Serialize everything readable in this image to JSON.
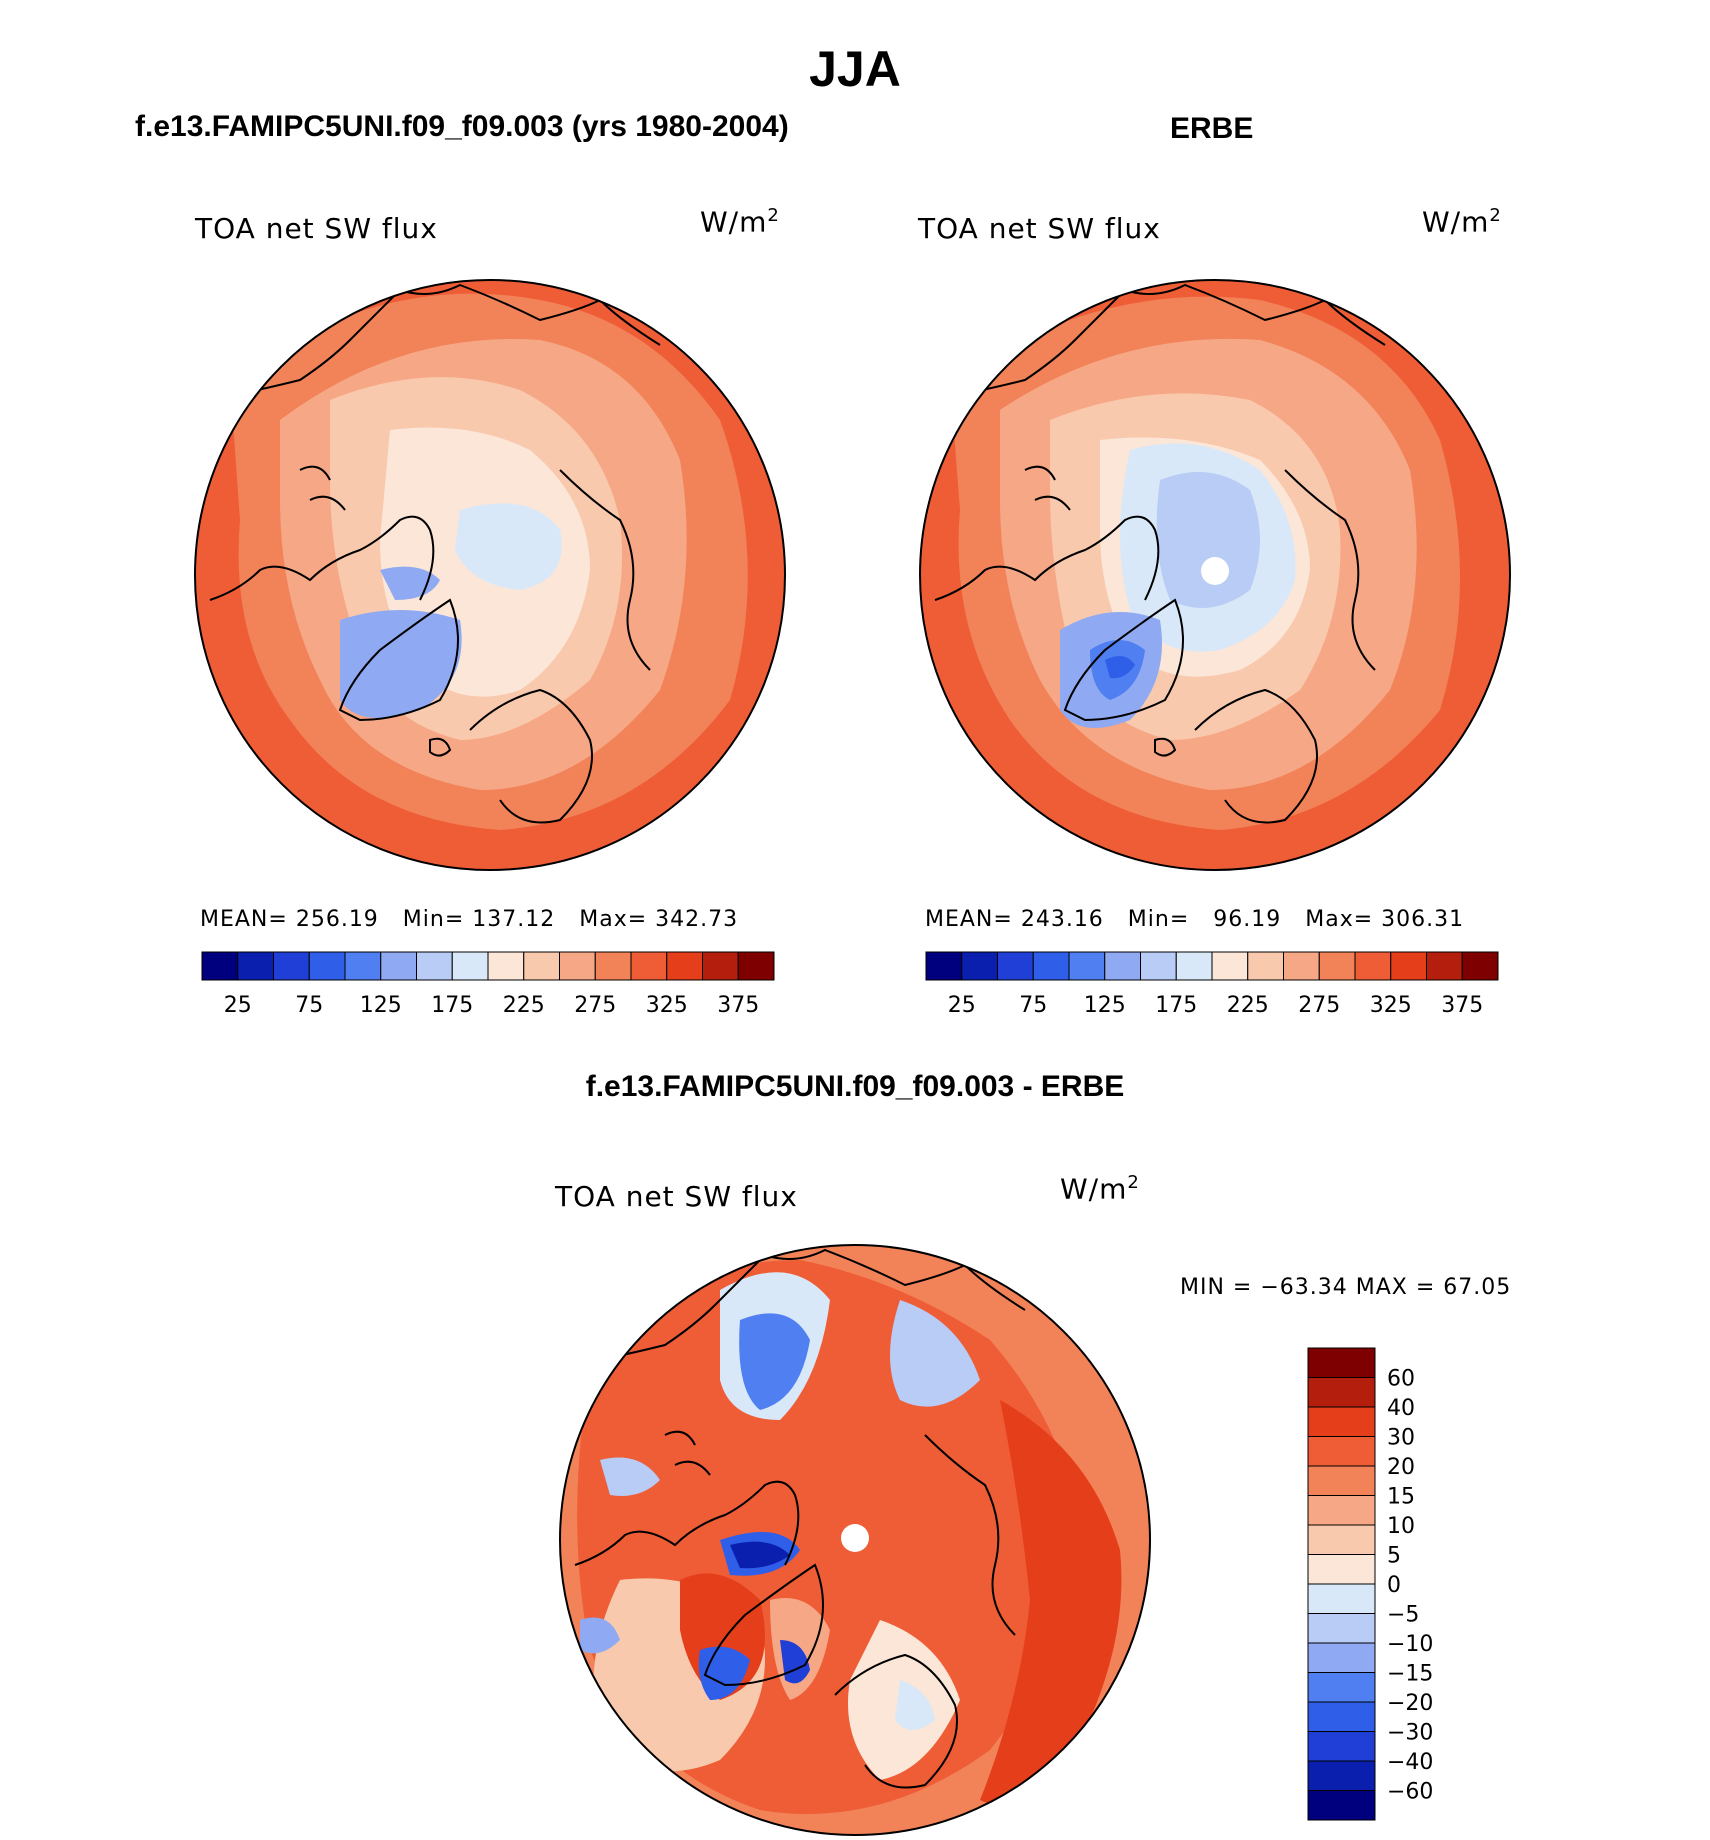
{
  "figure": {
    "title": "JJA",
    "panel1_title": "f.e13.FAMIPC5UNI.f09_f09.003 (yrs 1980-2004)",
    "panel2_title": "ERBE",
    "diff_title": "f.e13.FAMIPC5UNI.f09_f09.003 - ERBE"
  },
  "panels": {
    "model": {
      "field": "TOA net SW flux",
      "units": "W/m",
      "units_sup": "2",
      "mean_label": "MEAN=",
      "mean": "256.19",
      "min_label": "Min=",
      "min": "137.12",
      "max_label": "Max=",
      "max": "342.73"
    },
    "obs": {
      "field": "TOA net SW flux",
      "units": "W/m",
      "units_sup": "2",
      "mean_label": "MEAN=",
      "mean": "243.16",
      "min_label": "Min=",
      "min": "96.19",
      "max_label": "Max=",
      "max": "306.31"
    },
    "diff": {
      "field": "TOA net SW flux",
      "units": "W/m",
      "units_sup": "2",
      "minmax": "MIN = −63.34 MAX =   67.05"
    }
  },
  "colors": {
    "abs_scale": [
      "#00007f",
      "#0a1fae",
      "#1f3fd6",
      "#2f5fe8",
      "#4f7ff0",
      "#8faaf2",
      "#b8ccf5",
      "#d9e8f8",
      "#fbe6d8",
      "#f9c9ae",
      "#f6a785",
      "#f28258",
      "#ee5d36",
      "#e53e1b",
      "#b41e0c",
      "#7f0000"
    ],
    "diff_scale": [
      "#00007f",
      "#0a1fae",
      "#1f3fd6",
      "#2f5fe8",
      "#4f7ff0",
      "#8faaf2",
      "#b8ccf5",
      "#d9e8f8",
      "#fbe6d8",
      "#f9c9ae",
      "#f6a785",
      "#f28258",
      "#ee5d36",
      "#e53e1b",
      "#b41e0c",
      "#7f0000"
    ]
  },
  "chart_data": [
    {
      "type": "heatmap",
      "title": "f.e13.FAMIPC5UNI.f09_f09.003 (yrs 1980-2004)",
      "variable": "TOA net SW flux",
      "units": "W/m2",
      "projection": "north polar stereographic",
      "colorbar_levels": [
        25,
        50,
        75,
        100,
        125,
        150,
        175,
        200,
        225,
        250,
        275,
        300,
        325,
        350,
        375
      ],
      "colorbar_tick_labels": [
        "25",
        "75",
        "125",
        "175",
        "225",
        "275",
        "325",
        "375"
      ],
      "stats": {
        "mean": 256.19,
        "min": 137.12,
        "max": 342.73
      }
    },
    {
      "type": "heatmap",
      "title": "ERBE",
      "variable": "TOA net SW flux",
      "units": "W/m2",
      "projection": "north polar stereographic",
      "colorbar_levels": [
        25,
        50,
        75,
        100,
        125,
        150,
        175,
        200,
        225,
        250,
        275,
        300,
        325,
        350,
        375
      ],
      "colorbar_tick_labels": [
        "25",
        "75",
        "125",
        "175",
        "225",
        "275",
        "325",
        "375"
      ],
      "stats": {
        "mean": 243.16,
        "min": 96.19,
        "max": 306.31
      }
    },
    {
      "type": "heatmap",
      "title": "f.e13.FAMIPC5UNI.f09_f09.003 - ERBE",
      "variable": "TOA net SW flux",
      "units": "W/m2",
      "projection": "north polar stereographic",
      "colorbar_levels": [
        -60,
        -40,
        -30,
        -20,
        -15,
        -10,
        -5,
        0,
        5,
        10,
        15,
        20,
        30,
        40,
        60
      ],
      "colorbar_tick_labels": [
        "60",
        "40",
        "30",
        "20",
        "15",
        "10",
        "5",
        "0",
        "−5",
        "−10",
        "−15",
        "−20",
        "−30",
        "−40",
        "−60"
      ],
      "stats": {
        "min": -63.34,
        "max": 67.05
      }
    }
  ]
}
